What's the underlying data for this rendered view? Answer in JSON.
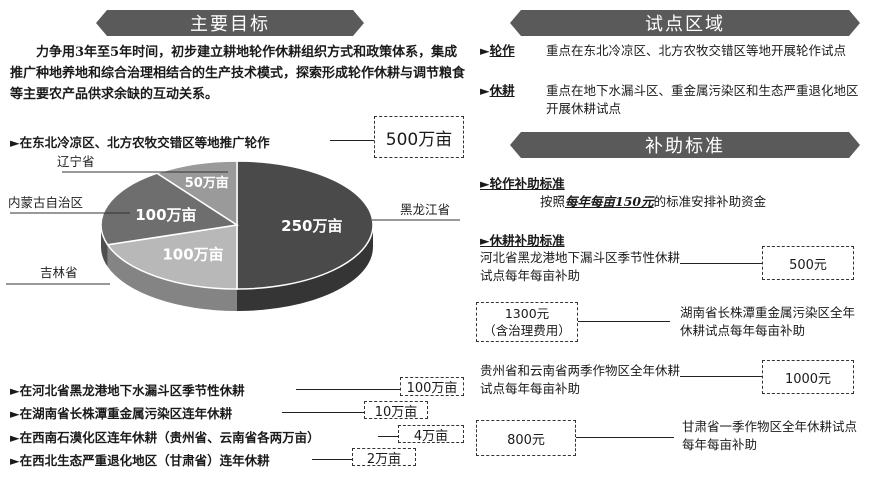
{
  "left": {
    "title": "主要目标",
    "paragraph": "力争用3年至5年时间，初步建立耕地轮作休耕组织方式和政策体系，集成推广种地养地和综合治理相结合的生产技术模式，探索形成轮作休耕与调节粮食等主要农产品供求余缺的互动关系。",
    "rotation_goal": {
      "text": "►在东北冷凉区、北方农牧交错区等地推广轮作",
      "value": "500万亩"
    },
    "fallow_goals": [
      {
        "text": "►在河北省黑龙港地下水漏斗区季节性休耕",
        "value": "100万亩"
      },
      {
        "text": "►在湖南省长株潭重金属污染区连年休耕",
        "value": "10万亩"
      },
      {
        "text": "►在西南石漠化区连年休耕（贵州省、云南省各两万亩）",
        "value": "4万亩"
      },
      {
        "text": "►在西北生态严重退化地区（甘肃省）连年休耕",
        "value": "2万亩"
      }
    ]
  },
  "chart_data": {
    "type": "pie",
    "unit": "万亩",
    "slices": [
      {
        "name": "黑龙江省",
        "value": 250,
        "label": "250万亩",
        "color": "#4a4a4a"
      },
      {
        "name": "吉林省",
        "value": 100,
        "label": "100万亩",
        "color": "#b8b8b8"
      },
      {
        "name": "内蒙古自治区",
        "value": 100,
        "label": "100万亩",
        "color": "#6e6e6e"
      },
      {
        "name": "辽宁省",
        "value": 50,
        "label": "50万亩",
        "color": "#9a9a9a"
      }
    ]
  },
  "right": {
    "pilot_title": "试点区域",
    "pilot_items": [
      {
        "label": "轮作",
        "text": "重点在东北冷凉区、北方农牧交错区等地开展轮作试点"
      },
      {
        "label": "休耕",
        "text": "重点在地下水漏斗区、重金属污染区和生态严重退化地区开展休耕试点"
      }
    ],
    "subsidy_title": "补助标准",
    "rotation_subsidy": {
      "heading": "►轮作补助标准",
      "prefix": "按照",
      "emphasis": "每年每亩150元",
      "suffix": "的标准安排补助资金"
    },
    "fallow_subsidy": {
      "heading": "►休耕补助标准",
      "items": [
        {
          "text": "河北省黑龙港地下漏斗区季节性休耕试点每年每亩补助",
          "value": "500元"
        },
        {
          "text": "湖南省长株潭重金属污染区全年休耕试点每年每亩补助",
          "value": "1300元",
          "note": "（含治理费用）"
        },
        {
          "text": "贵州省和云南省两季作物区全年休耕试点每年每亩补助",
          "value": "1000元"
        },
        {
          "text": "甘肃省一季作物区全年休耕试点每年每亩补助",
          "value": "800元"
        }
      ]
    }
  }
}
